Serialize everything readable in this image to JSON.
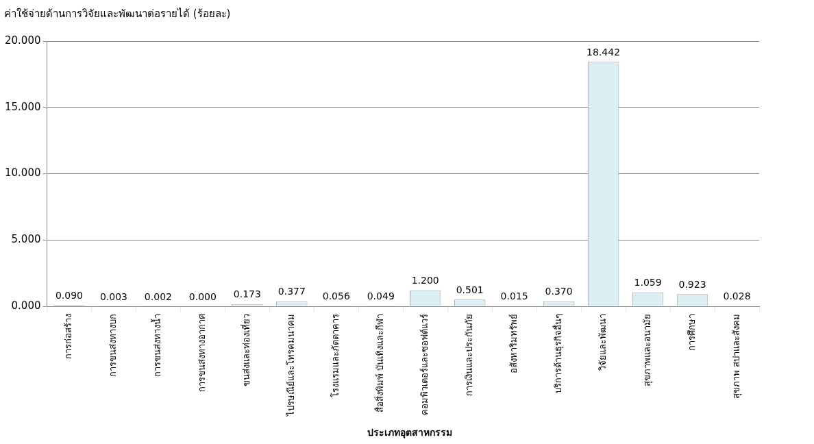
{
  "chart_data": {
    "type": "bar",
    "title": "ค่าใช้จ่ายด้านการวิจัยและพัฒนาต่อรายได้ (ร้อยละ)",
    "xlabel": "ประเภทอุตสาหกรรม",
    "categories": [
      "การก่อสร้าง",
      "การขนส่งทางบก",
      "การขนส่งทางน้ำ",
      "การขนส่งทางอากาศ",
      "ขนส่งและท่องเที่ยว",
      "ไปรษณีย์และโทรคมนาคม",
      "โรงแรมและภัตตาคาร",
      "สื่อสิ่งพิมพ์ บันเทิงและกีฬา",
      "คอมพิวเตอร์และซอฟต์แวร์",
      "การเงินและประกันภัย",
      "อสังหาริมทรัพย์",
      "บริการด้านธุรกิจอื่นๆ",
      "วิจัยและพัฒนา",
      "สุขภาพและอนามัย",
      "การศึกษา",
      "สุขภาพ สปาและสังคม"
    ],
    "values": [
      0.09,
      0.003,
      0.002,
      0.0,
      0.173,
      0.377,
      0.056,
      0.049,
      1.2,
      0.501,
      0.015,
      0.37,
      18.442,
      1.059,
      0.923,
      0.028
    ],
    "value_labels": [
      "0.090",
      "0.003",
      "0.002",
      "0.000",
      "0.173",
      "0.377",
      "0.056",
      "0.049",
      "1.200",
      "0.501",
      "0.015",
      "0.370",
      "18.442",
      "1.059",
      "0.923",
      "0.028"
    ],
    "color": "#dbeef4",
    "ylim": [
      0,
      20
    ],
    "yticks": [
      {
        "value": 0,
        "label": "0.000"
      },
      {
        "value": 5,
        "label": "5.000"
      },
      {
        "value": 10,
        "label": "10.000"
      },
      {
        "value": 15,
        "label": "15.000"
      },
      {
        "value": 20,
        "label": "20.000"
      }
    ],
    "grid": "y",
    "legend": false
  }
}
